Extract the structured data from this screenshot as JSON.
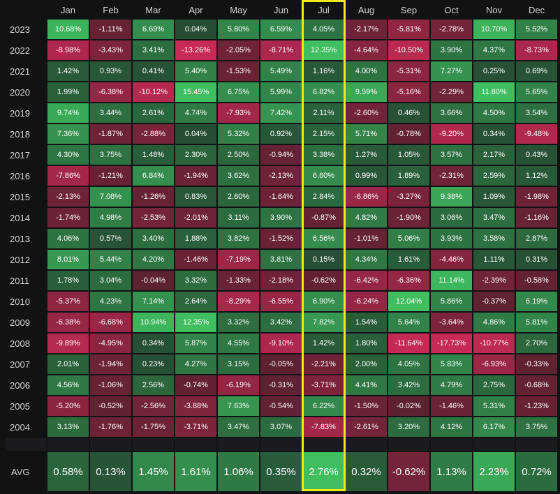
{
  "chart_data": {
    "type": "heatmap",
    "avg_label": "AVG",
    "months": [
      "Jan",
      "Feb",
      "Mar",
      "Apr",
      "May",
      "Jun",
      "Jul",
      "Aug",
      "Sep",
      "Oct",
      "Nov",
      "Dec"
    ],
    "highlighted_month": "Jul",
    "highlight_color": "#f2ea1b",
    "positive_color": "#3fbf60",
    "negative_color": "#c72a55",
    "rows": [
      {
        "year": "2023",
        "values": [
          10.68,
          -1.11,
          6.69,
          0.04,
          5.8,
          6.59,
          4.05,
          -2.17,
          -5.81,
          -2.78,
          10.7,
          5.52
        ]
      },
      {
        "year": "2022",
        "values": [
          -8.98,
          -3.43,
          3.41,
          -13.26,
          -2.05,
          -8.71,
          12.35,
          -4.64,
          -10.5,
          3.9,
          4.37,
          -8.73
        ]
      },
      {
        "year": "2021",
        "values": [
          1.42,
          0.93,
          0.41,
          5.4,
          -1.53,
          5.49,
          1.16,
          4.0,
          -5.31,
          7.27,
          0.25,
          0.69
        ]
      },
      {
        "year": "2020",
        "values": [
          1.99,
          -6.38,
          -10.12,
          15.45,
          6.75,
          5.99,
          6.82,
          9.59,
          -5.16,
          -2.29,
          11.8,
          5.65
        ]
      },
      {
        "year": "2019",
        "values": [
          9.74,
          3.44,
          2.61,
          4.74,
          -7.93,
          7.42,
          2.11,
          -2.6,
          0.46,
          3.66,
          4.5,
          3.54
        ]
      },
      {
        "year": "2018",
        "values": [
          7.36,
          -1.87,
          -2.88,
          0.04,
          5.32,
          0.92,
          2.15,
          5.71,
          -0.78,
          -9.2,
          0.34,
          -9.48
        ]
      },
      {
        "year": "2017",
        "values": [
          4.3,
          3.75,
          1.48,
          2.3,
          2.5,
          -0.94,
          3.38,
          1.27,
          1.05,
          3.57,
          2.17,
          0.43
        ]
      },
      {
        "year": "2016",
        "values": [
          -7.86,
          -1.21,
          6.84,
          -1.94,
          3.62,
          -2.13,
          6.6,
          0.99,
          1.89,
          -2.31,
          2.59,
          1.12
        ]
      },
      {
        "year": "2015",
        "values": [
          -2.13,
          7.08,
          -1.26,
          0.83,
          2.6,
          -1.64,
          2.84,
          -6.86,
          -3.27,
          9.38,
          1.09,
          -1.98
        ]
      },
      {
        "year": "2014",
        "values": [
          -1.74,
          4.98,
          -2.53,
          -2.01,
          3.11,
          3.9,
          -0.87,
          4.82,
          -1.9,
          3.06,
          3.47,
          -1.16
        ]
      },
      {
        "year": "2013",
        "values": [
          4.06,
          0.57,
          3.4,
          1.88,
          3.82,
          -1.52,
          6.56,
          -1.01,
          5.06,
          3.93,
          3.58,
          2.87
        ]
      },
      {
        "year": "2012",
        "values": [
          8.01,
          5.44,
          4.2,
          -1.46,
          -7.19,
          3.81,
          0.15,
          4.34,
          1.61,
          -4.46,
          1.11,
          0.31
        ]
      },
      {
        "year": "2011",
        "values": [
          1.78,
          3.04,
          -0.04,
          3.32,
          -1.33,
          -2.18,
          -0.62,
          -6.42,
          -6.36,
          11.14,
          -2.39,
          -0.58
        ]
      },
      {
        "year": "2010",
        "values": [
          -5.37,
          4.23,
          7.14,
          2.64,
          -8.29,
          -6.55,
          6.9,
          -6.24,
          12.04,
          5.86,
          -0.37,
          6.19
        ]
      },
      {
        "year": "2009",
        "values": [
          -6.38,
          -6.68,
          10.94,
          12.35,
          3.32,
          3.42,
          7.82,
          1.54,
          5.64,
          -3.64,
          4.86,
          5.81
        ]
      },
      {
        "year": "2008",
        "values": [
          -9.89,
          -4.95,
          0.34,
          5.87,
          4.55,
          -9.1,
          1.42,
          1.8,
          -11.64,
          -17.73,
          -10.77,
          2.7
        ]
      },
      {
        "year": "2007",
        "values": [
          2.01,
          -1.94,
          0.23,
          4.27,
          3.15,
          -0.05,
          -2.21,
          2.0,
          4.05,
          5.83,
          -6.93,
          -0.33
        ]
      },
      {
        "year": "2006",
        "values": [
          4.56,
          -1.06,
          2.56,
          -0.74,
          -6.19,
          -0.31,
          -3.71,
          4.41,
          3.42,
          4.79,
          2.75,
          -0.68
        ]
      },
      {
        "year": "2005",
        "values": [
          -5.2,
          -0.52,
          -2.56,
          -3.88,
          7.63,
          -0.54,
          6.22,
          -1.5,
          -0.02,
          -1.46,
          5.31,
          -1.23
        ]
      },
      {
        "year": "2004",
        "values": [
          3.13,
          -1.76,
          -1.75,
          -3.71,
          3.47,
          3.07,
          -7.83,
          -2.61,
          3.2,
          4.12,
          6.17,
          3.75
        ]
      }
    ],
    "avg": [
      0.58,
      0.13,
      1.45,
      1.61,
      1.06,
      0.35,
      2.76,
      0.32,
      -0.62,
      1.13,
      2.23,
      0.72
    ]
  }
}
